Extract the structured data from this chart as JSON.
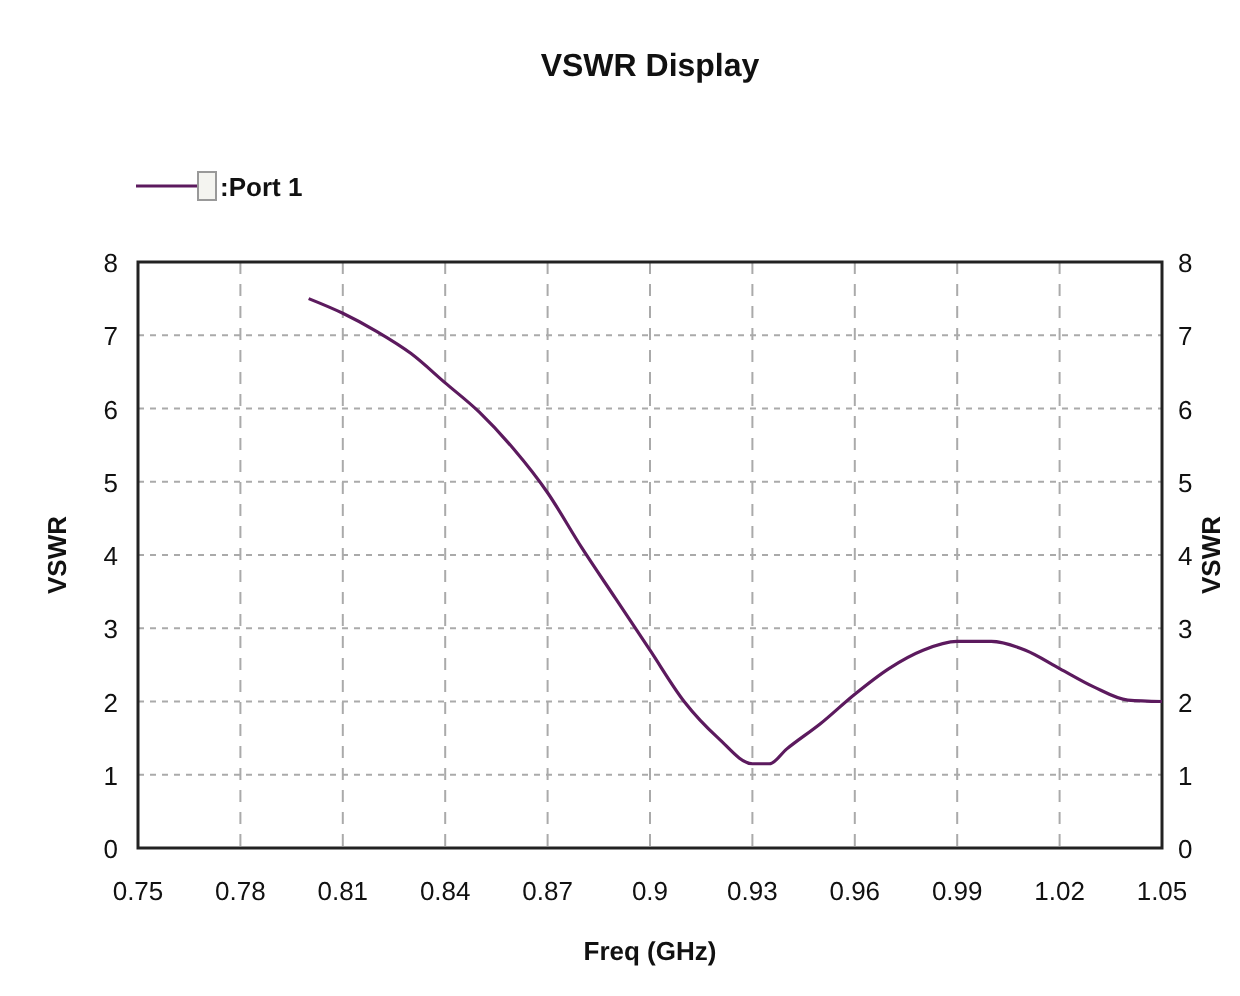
{
  "chart_data": {
    "type": "line",
    "title": "VSWR Display",
    "xlabel": "Freq (GHz)",
    "ylabel": "VSWR",
    "y2label": "VSWR",
    "xlim": [
      0.75,
      1.05
    ],
    "xticks": [
      0.75,
      0.78,
      0.81,
      0.84,
      0.87,
      0.9,
      0.93,
      0.96,
      0.99,
      1.02,
      1.05
    ],
    "ylim": [
      0,
      8
    ],
    "yticks": [
      0,
      1,
      2,
      3,
      4,
      5,
      6,
      7,
      8
    ],
    "y2lim": [
      0,
      8
    ],
    "y2ticks": [
      0,
      1,
      2,
      3,
      4,
      5,
      6,
      7,
      8
    ],
    "grid": true,
    "legend": "top left",
    "line_style": "solid",
    "marker": "none",
    "series": [
      {
        "name": ":Port 1",
        "color": "#5c1a5e",
        "x": [
          0.8,
          0.81,
          0.82,
          0.83,
          0.84,
          0.85,
          0.86,
          0.87,
          0.88,
          0.89,
          0.9,
          0.91,
          0.92,
          0.93,
          0.935,
          0.94,
          0.95,
          0.96,
          0.97,
          0.98,
          0.99,
          1.0,
          1.01,
          1.02,
          1.03,
          1.04,
          1.05
        ],
        "values": [
          7.5,
          7.3,
          7.05,
          6.75,
          6.35,
          5.95,
          5.45,
          4.85,
          4.1,
          3.4,
          2.7,
          2.0,
          1.5,
          1.15,
          1.15,
          1.35,
          1.7,
          2.1,
          2.45,
          2.7,
          2.82,
          2.82,
          2.7,
          2.45,
          2.2,
          2.02,
          2.0
        ]
      }
    ]
  }
}
